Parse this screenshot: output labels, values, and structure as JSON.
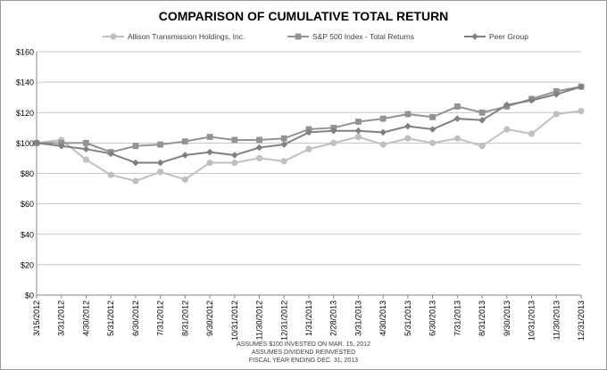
{
  "chart_data": {
    "type": "line",
    "title": "COMPARISON OF CUMULATIVE TOTAL RETURN",
    "xlabel": "",
    "ylabel": "",
    "ylim": [
      0,
      160
    ],
    "y_ticks": [
      "$0",
      "$20",
      "$40",
      "$60",
      "$80",
      "$100",
      "$120",
      "$140",
      "$160"
    ],
    "y_tick_values": [
      0,
      20,
      40,
      60,
      80,
      100,
      120,
      140,
      160
    ],
    "grid": true,
    "legend_position": "top-center",
    "categories": [
      "3/15/2012",
      "3/31/2012",
      "4/30/2012",
      "5/31/2012",
      "6/30/2012",
      "7/31/2012",
      "8/31/2012",
      "9/30/2012",
      "10/31/2012",
      "11/30/2012",
      "12/31/2012",
      "1/31/2013",
      "2/28/2013",
      "3/31/2013",
      "4/30/2013",
      "5/31/2013",
      "6/30/2013",
      "7/31/2013",
      "8/31/2013",
      "9/30/2013",
      "10/31/2013",
      "11/30/2013",
      "12/31/2013"
    ],
    "series": [
      {
        "name": "Allison Transmission Holdings, Inc.",
        "color": "#c0c0c0",
        "marker": "circle",
        "values": [
          100,
          102,
          89,
          79,
          75,
          81,
          76,
          87,
          87,
          90,
          88,
          96,
          100,
          104,
          99,
          103,
          100,
          103,
          98,
          109,
          106,
          119,
          121
        ]
      },
      {
        "name": "S&P 500 Index - Total Returns",
        "color": "#939393",
        "marker": "square",
        "values": [
          100,
          100,
          100,
          94,
          98,
          99,
          101,
          104,
          102,
          102,
          103,
          109,
          110,
          114,
          116,
          119,
          117,
          124,
          120,
          124,
          129,
          134,
          137
        ]
      },
      {
        "name": "Peer Group",
        "color": "#808080",
        "marker": "diamond",
        "values": [
          100,
          98,
          96,
          93,
          87,
          87,
          92,
          94,
          92,
          97,
          99,
          107,
          108,
          108,
          107,
          111,
          109,
          116,
          115,
          125,
          128,
          132,
          137
        ]
      }
    ],
    "footnotes": [
      "ASSUMES $100 INVESTED ON MAR. 15, 2012",
      "ASSUMES DIVIDEND REINVESTED",
      "FISCAL YEAR ENDING DEC. 31, 2013"
    ]
  }
}
